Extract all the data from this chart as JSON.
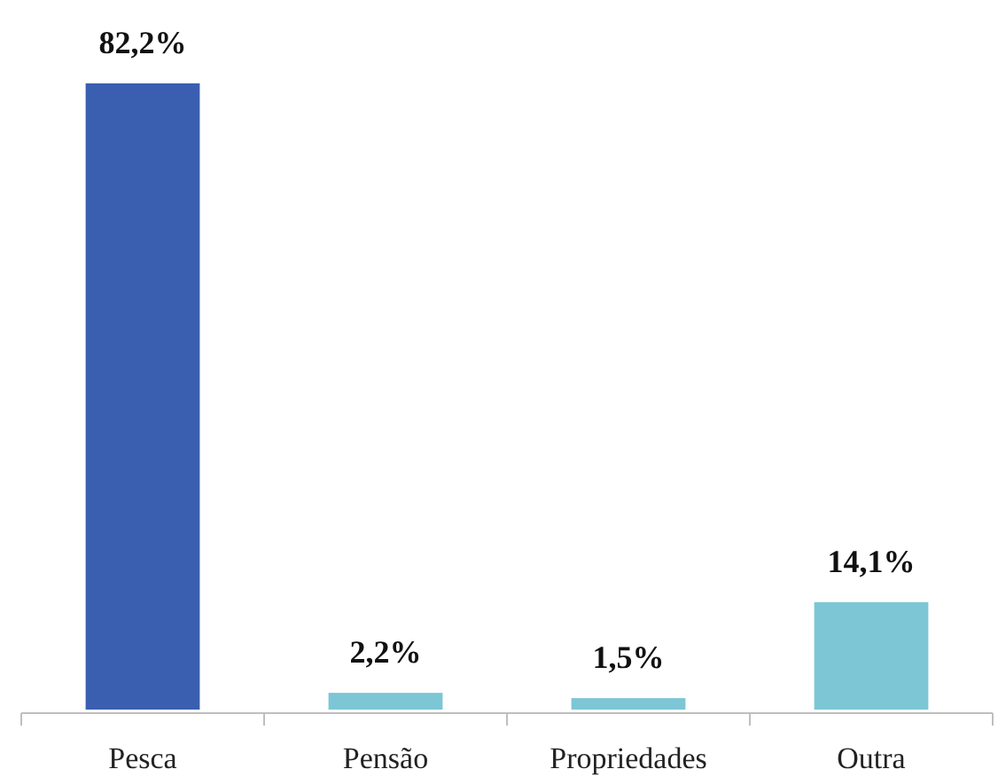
{
  "chart_data": {
    "type": "bar",
    "categories": [
      "Pesca",
      "Pensão",
      "Propriedades",
      "Outra"
    ],
    "values": [
      82.2,
      2.2,
      1.5,
      14.1
    ],
    "colors": [
      "#3a5fb1",
      "#7cc6d6",
      "#7cc6d6",
      "#7cc6d6"
    ],
    "value_labels": [
      "82,2%",
      "2,2%",
      "1,5%",
      "14,1%"
    ]
  }
}
